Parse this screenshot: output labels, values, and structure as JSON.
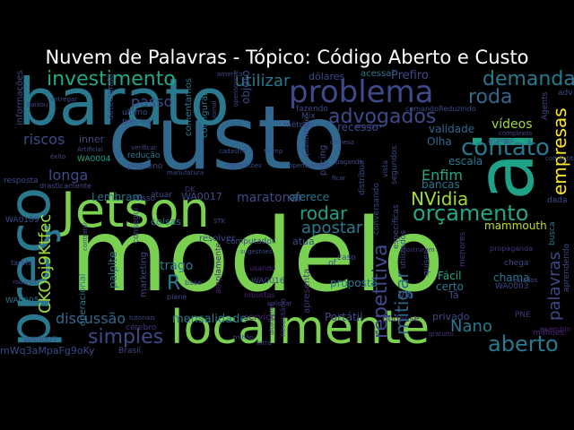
{
  "title": "Nuvem de Palavras - Tópico: Código Aberto e Custo",
  "palette": {
    "background": "#000000",
    "title_text": "#ffffff",
    "green": "#7ad151",
    "light_green": "#a0da39",
    "teal": "#1fa187",
    "teal_light": "#22a884",
    "sea": "#2a788e",
    "blue": "#31688e",
    "slate": "#3e4a89",
    "indigo": "#46337e",
    "purple": "#482475",
    "deep_purple": "#440154",
    "yellow": "#fde725",
    "lime": "#bddf26"
  },
  "words": [
    {
      "text": "modelo",
      "color": "#7ad151"
    },
    {
      "text": "custo",
      "color": "#31688e"
    },
    {
      "text": "barato",
      "color": "#2a788e"
    },
    {
      "text": "ai",
      "color": "#1fa187"
    },
    {
      "text": "localmente",
      "color": "#7ad151"
    },
    {
      "text": "Jetson",
      "color": "#7ad151"
    },
    {
      "text": "preço",
      "color": "#2a788e"
    },
    {
      "text": "problema",
      "color": "#3e4a89"
    },
    {
      "text": "investimento",
      "color": "#22a884"
    },
    {
      "text": "orçamento",
      "color": "#22a884"
    },
    {
      "text": "contato",
      "color": "#2a788e"
    },
    {
      "text": "advogados",
      "color": "#3e4a89"
    },
    {
      "text": "demanda",
      "color": "#2a788e"
    },
    {
      "text": "roda",
      "color": "#31688e"
    },
    {
      "text": "aberto",
      "color": "#2a788e"
    },
    {
      "text": "simples",
      "color": "#3e4a89"
    },
    {
      "text": "rodar",
      "color": "#1fa187"
    },
    {
      "text": "apostar",
      "color": "#2a788e"
    },
    {
      "text": "NVidia",
      "color": "#a0da39"
    },
    {
      "text": "repetitiva",
      "color": "#3e4a89"
    },
    {
      "text": "mitigar",
      "color": "#31688e"
    },
    {
      "text": "empresas",
      "color": "#fde725"
    },
    {
      "text": "palavras",
      "color": "#3e4a89"
    },
    {
      "text": "Nano",
      "color": "#2a788e"
    },
    {
      "text": "utilizar",
      "color": "#2a788e"
    },
    {
      "text": "passo",
      "color": "#3e4a89"
    },
    {
      "text": "longa",
      "color": "#3e4a89"
    },
    {
      "text": "riscos",
      "color": "#3e4a89"
    },
    {
      "text": "Enfim",
      "color": "#22a884"
    },
    {
      "text": "CKOoj9Ktfec",
      "color": "#a0da39"
    },
    {
      "text": "discussão",
      "color": "#31688e"
    },
    {
      "text": "mensalidade",
      "color": "#2a788e"
    },
    {
      "text": "R",
      "color": "#2a788e"
    },
    {
      "text": "trago",
      "color": "#2a788e"
    },
    {
      "text": "maratonar",
      "color": "#3e4a89"
    },
    {
      "text": "WA0017",
      "color": "#3e4a89"
    },
    {
      "text": "Lembram",
      "color": "#2a788e"
    },
    {
      "text": "vídeos",
      "color": "#a0da39"
    },
    {
      "text": "mammouth",
      "color": "#bddf26"
    },
    {
      "text": "Portátil",
      "color": "#3e4a89"
    },
    {
      "text": "Fácil",
      "color": "#22a884"
    },
    {
      "text": "chama",
      "color": "#2a788e"
    },
    {
      "text": "certo",
      "color": "#2a788e"
    },
    {
      "text": "Olha",
      "color": "#31688e"
    },
    {
      "text": "bancas",
      "color": "#2a788e"
    },
    {
      "text": "escala",
      "color": "#2a788e"
    },
    {
      "text": "validade",
      "color": "#31688e"
    },
    {
      "text": "recesso",
      "color": "#3e4a89"
    },
    {
      "text": "dólares",
      "color": "#3e4a89"
    },
    {
      "text": "acessar",
      "color": "#2a788e"
    },
    {
      "text": "Prefiro",
      "color": "#3e4a89"
    },
    {
      "text": "oferece",
      "color": "#2a788e"
    },
    {
      "text": "proposta",
      "color": "#2a788e"
    },
    {
      "text": "atua",
      "color": "#3e4a89"
    },
    {
      "text": "coisas",
      "color": "#2a788e"
    },
    {
      "text": "resolver",
      "color": "#3e4a89"
    },
    {
      "text": "WA0016",
      "color": "#3e4a89"
    },
    {
      "text": "WA0109",
      "color": "#3e4a89"
    },
    {
      "text": "WA0005",
      "color": "#2a788e"
    },
    {
      "text": "WA0007",
      "color": "#3e4a89"
    },
    {
      "text": "WA0003",
      "color": "#3e4a89"
    },
    {
      "text": "WA0004",
      "color": "#1fa187"
    },
    {
      "text": "inner",
      "color": "#3e4a89"
    },
    {
      "text": "palpite",
      "color": "#2a788e"
    },
    {
      "text": "marketing",
      "color": "#3e4a89"
    },
    {
      "text": "operacional",
      "color": "#2a788e"
    },
    {
      "text": "informações",
      "color": "#3e4a89"
    },
    {
      "text": "mWq3aMpaFg9oKy",
      "color": "#3e4a89"
    },
    {
      "text": "Brasil",
      "color": "#3e4a89"
    },
    {
      "text": "privado",
      "color": "#3e4a89"
    },
    {
      "text": "Viu",
      "color": "#3e4a89"
    },
    {
      "text": "Tá",
      "color": "#3e4a89"
    },
    {
      "text": "PNE",
      "color": "#46337e"
    },
    {
      "text": "busca",
      "color": "#2a788e"
    },
    {
      "text": "dada",
      "color": "#3e4a89"
    },
    {
      "text": "comentamos",
      "color": "#2a788e"
    },
    {
      "text": "configurar",
      "color": "#2a788e"
    },
    {
      "text": "redução",
      "color": "#2a788e"
    },
    {
      "text": "pequeno",
      "color": "#3e4a89"
    },
    {
      "text": "disso",
      "color": "#3e4a89"
    },
    {
      "text": "atuar",
      "color": "#3e4a89"
    },
    {
      "text": "método",
      "color": "#3e4a89"
    },
    {
      "text": "fazendo",
      "color": "#3e4a89"
    },
    {
      "text": "distribuir",
      "color": "#3e4a89"
    },
    {
      "text": "conversando",
      "color": "#3e4a89"
    },
    {
      "text": "utilizados",
      "color": "#3e4a89"
    },
    {
      "text": "quiser",
      "color": "#3e4a89"
    },
    {
      "text": "menores",
      "color": "#46337e"
    },
    {
      "text": "chega",
      "color": "#3e4a89"
    },
    {
      "text": "aprendendo",
      "color": "#3e4a89"
    },
    {
      "text": "adv",
      "color": "#3e4a89"
    },
    {
      "text": "drasticamente",
      "color": "#3e4a89"
    },
    {
      "text": "tarefa",
      "color": "#3e4a89"
    },
    {
      "text": "resposta",
      "color": "#3e4a89"
    },
    {
      "text": "computador",
      "color": "#3e4a89"
    },
    {
      "text": "robustas",
      "color": "#482475"
    },
    {
      "text": "cérebro",
      "color": "#46337e"
    },
    {
      "text": "amplamente",
      "color": "#482475"
    },
    {
      "text": "serviço",
      "color": "#482475"
    },
    {
      "text": "necessário",
      "color": "#46337e"
    },
    {
      "text": "pudesse",
      "color": "#482475"
    },
    {
      "text": "apresenta",
      "color": "#46337e"
    },
    {
      "text": "segundos",
      "color": "#3e4a89"
    },
    {
      "text": "específicas",
      "color": "#3e4a89"
    },
    {
      "text": "pricing",
      "color": "#3e4a89"
    },
    {
      "text": "usando",
      "color": "#482475"
    },
    {
      "text": "comandoReduzindo",
      "color": "#3e4a89"
    },
    {
      "text": "Agents",
      "color": "#3e4a89"
    },
    {
      "text": "milhões",
      "color": "#482475"
    },
    {
      "text": "DK",
      "color": "#46337e"
    },
    {
      "text": "of",
      "color": "#3e4a89"
    },
    {
      "text": "caso",
      "color": "#3e4a89"
    },
    {
      "text": "base",
      "color": "#3e4a89"
    },
    {
      "text": "plane",
      "color": "#3e4a89"
    },
    {
      "text": "propaganda",
      "color": "#46337e"
    },
    {
      "text": "exemplo",
      "color": "#482475"
    },
    {
      "text": "consegui",
      "color": "#3e4a89"
    },
    {
      "text": "Mix",
      "color": "#3e4a89"
    },
    {
      "text": "ultimo",
      "color": "#3e4a89"
    },
    {
      "text": "precisa",
      "color": "#3e4a89"
    },
    {
      "text": "detectando",
      "color": "#3e4a89"
    },
    {
      "text": "Artificial",
      "color": "#3e4a89"
    },
    {
      "text": "baixou",
      "color": "#3e4a89"
    },
    {
      "text": "mostraram",
      "color": "#46337e"
    },
    {
      "text": "sugestoes",
      "color": "#3e4a89"
    },
    {
      "text": "trump",
      "color": "#3e4a89"
    },
    {
      "text": "impressões",
      "color": "#3e4a89"
    },
    {
      "text": "vista",
      "color": "#3e4a89"
    },
    {
      "text": "chinesa",
      "color": "#3e4a89"
    },
    {
      "text": "pagando",
      "color": "#3e4a89"
    },
    {
      "text": "complexos",
      "color": "#3e4a89"
    },
    {
      "text": "análises",
      "color": "#3e4a89"
    },
    {
      "text": "tutoriais",
      "color": "#3e4a89"
    },
    {
      "text": "trilhão",
      "color": "#3e4a89"
    },
    {
      "text": "solicitar",
      "color": "#3e4a89"
    },
    {
      "text": "altamente",
      "color": "#46337e"
    },
    {
      "text": "intra",
      "color": "#3e4a89"
    },
    {
      "text": "gratuito",
      "color": "#46337e"
    },
    {
      "text": "verificar",
      "color": "#3e4a89"
    },
    {
      "text": "opensource",
      "color": "#3e4a89"
    },
    {
      "text": "quantidade",
      "color": "#3e4a89"
    },
    {
      "text": "rodando",
      "color": "#3e4a89"
    },
    {
      "text": "contratar",
      "color": "#3e4a89"
    },
    {
      "text": "entregar",
      "color": "#3e4a89"
    },
    {
      "text": "êxito",
      "color": "#3e4a89"
    },
    {
      "text": "objeto",
      "color": "#3e4a89"
    },
    {
      "text": "america",
      "color": "#3e4a89"
    },
    {
      "text": "estados",
      "color": "#3e4a89"
    },
    {
      "text": "ficar",
      "color": "#3e4a89"
    },
    {
      "text": "envolver",
      "color": "#3e4a89"
    },
    {
      "text": "STK",
      "color": "#3e4a89"
    },
    {
      "text": "manufatura",
      "color": "#3e4a89"
    },
    {
      "text": "jornal",
      "color": "#3e4a89"
    },
    {
      "text": "cadastro",
      "color": "#3e4a89"
    },
    {
      "text": "competitivo",
      "color": "#3e4a89"
    },
    {
      "text": "opensource2",
      "color": "#3e4a89"
    }
  ]
}
